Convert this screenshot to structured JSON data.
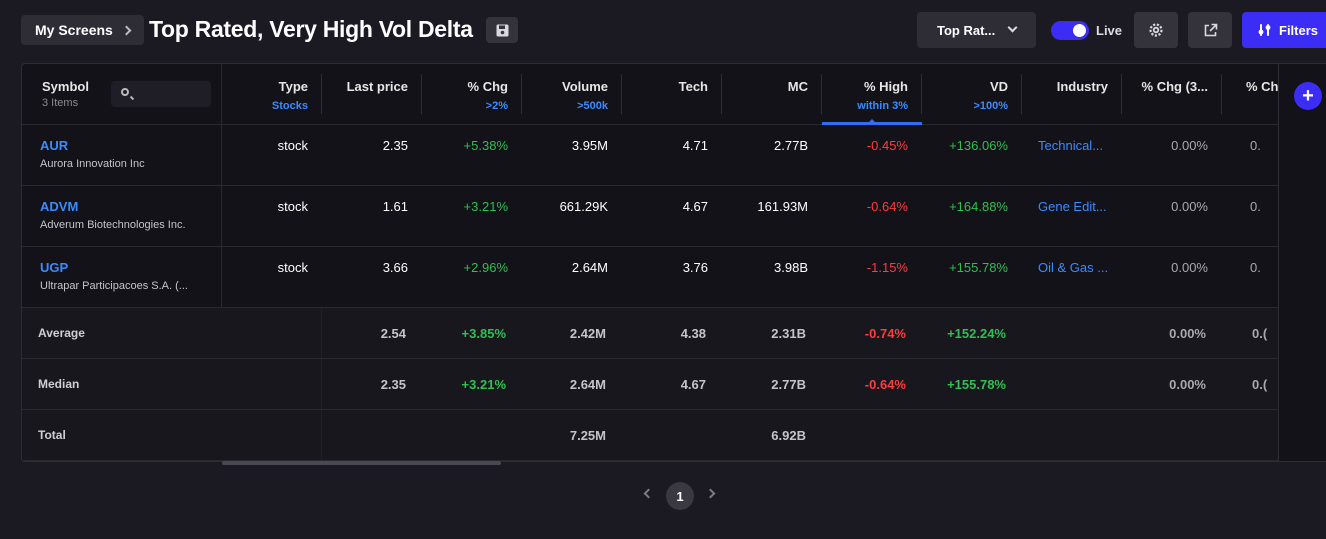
{
  "header": {
    "my_screens_label": "My Screens",
    "title": "Top Rated, Very High Vol Delta",
    "screen_select_value": "Top Rat...",
    "live_label": "Live",
    "filters_label": "Filters"
  },
  "table": {
    "symbol_header": "Symbol",
    "items_count": "3 Items",
    "search_placeholder": "",
    "columns": [
      {
        "label": "Type",
        "filter": "Stocks"
      },
      {
        "label": "Last price",
        "filter": ""
      },
      {
        "label": "% Chg",
        "filter": ">2%"
      },
      {
        "label": "Volume",
        "filter": ">500k"
      },
      {
        "label": "Tech",
        "filter": ""
      },
      {
        "label": "MC",
        "filter": ""
      },
      {
        "label": "% High",
        "filter": "within 3%"
      },
      {
        "label": "VD",
        "filter": ">100%"
      },
      {
        "label": "Industry",
        "filter": ""
      },
      {
        "label": "% Chg (3...",
        "filter": ""
      },
      {
        "label": "% Chg",
        "filter": ""
      }
    ],
    "rows": [
      {
        "ticker": "AUR",
        "name": "Aurora Innovation Inc",
        "type": "stock",
        "last_price": "2.35",
        "pct_chg": "+5.38%",
        "volume": "3.95M",
        "tech": "4.71",
        "mc": "2.77B",
        "pct_high": "-0.45%",
        "vd": "+136.06%",
        "industry": "Technical...",
        "pct_chg_3": "0.00%",
        "pct_chg_x": "0."
      },
      {
        "ticker": "ADVM",
        "name": "Adverum Biotechnologies Inc.",
        "type": "stock",
        "last_price": "1.61",
        "pct_chg": "+3.21%",
        "volume": "661.29K",
        "tech": "4.67",
        "mc": "161.93M",
        "pct_high": "-0.64%",
        "vd": "+164.88%",
        "industry": "Gene Edit...",
        "pct_chg_3": "0.00%",
        "pct_chg_x": "0."
      },
      {
        "ticker": "UGP",
        "name": "Ultrapar Participacoes S.A. (...",
        "type": "stock",
        "last_price": "3.66",
        "pct_chg": "+2.96%",
        "volume": "2.64M",
        "tech": "3.76",
        "mc": "3.98B",
        "pct_high": "-1.15%",
        "vd": "+155.78%",
        "industry": "Oil & Gas ...",
        "pct_chg_3": "0.00%",
        "pct_chg_x": "0."
      }
    ],
    "summary": [
      {
        "label": "Average",
        "last_price": "2.54",
        "pct_chg": "+3.85%",
        "volume": "2.42M",
        "tech": "4.38",
        "mc": "2.31B",
        "pct_high": "-0.74%",
        "vd": "+152.24%",
        "pct_chg_3": "0.00%",
        "pct_chg_x": "0.("
      },
      {
        "label": "Median",
        "last_price": "2.35",
        "pct_chg": "+3.21%",
        "volume": "2.64M",
        "tech": "4.67",
        "mc": "2.77B",
        "pct_high": "-0.64%",
        "vd": "+155.78%",
        "pct_chg_3": "0.00%",
        "pct_chg_x": "0.("
      },
      {
        "label": "Total",
        "last_price": "",
        "pct_chg": "",
        "volume": "7.25M",
        "tech": "",
        "mc": "6.92B",
        "pct_high": "",
        "vd": "",
        "pct_chg_3": "",
        "pct_chg_x": ""
      }
    ]
  },
  "pagination": {
    "current_page": "1"
  },
  "colors": {
    "accent": "#3b2df5",
    "link": "#3a8bff",
    "positive": "#2fbf52",
    "negative": "#ff3b3b",
    "background": "#1b1a22"
  }
}
